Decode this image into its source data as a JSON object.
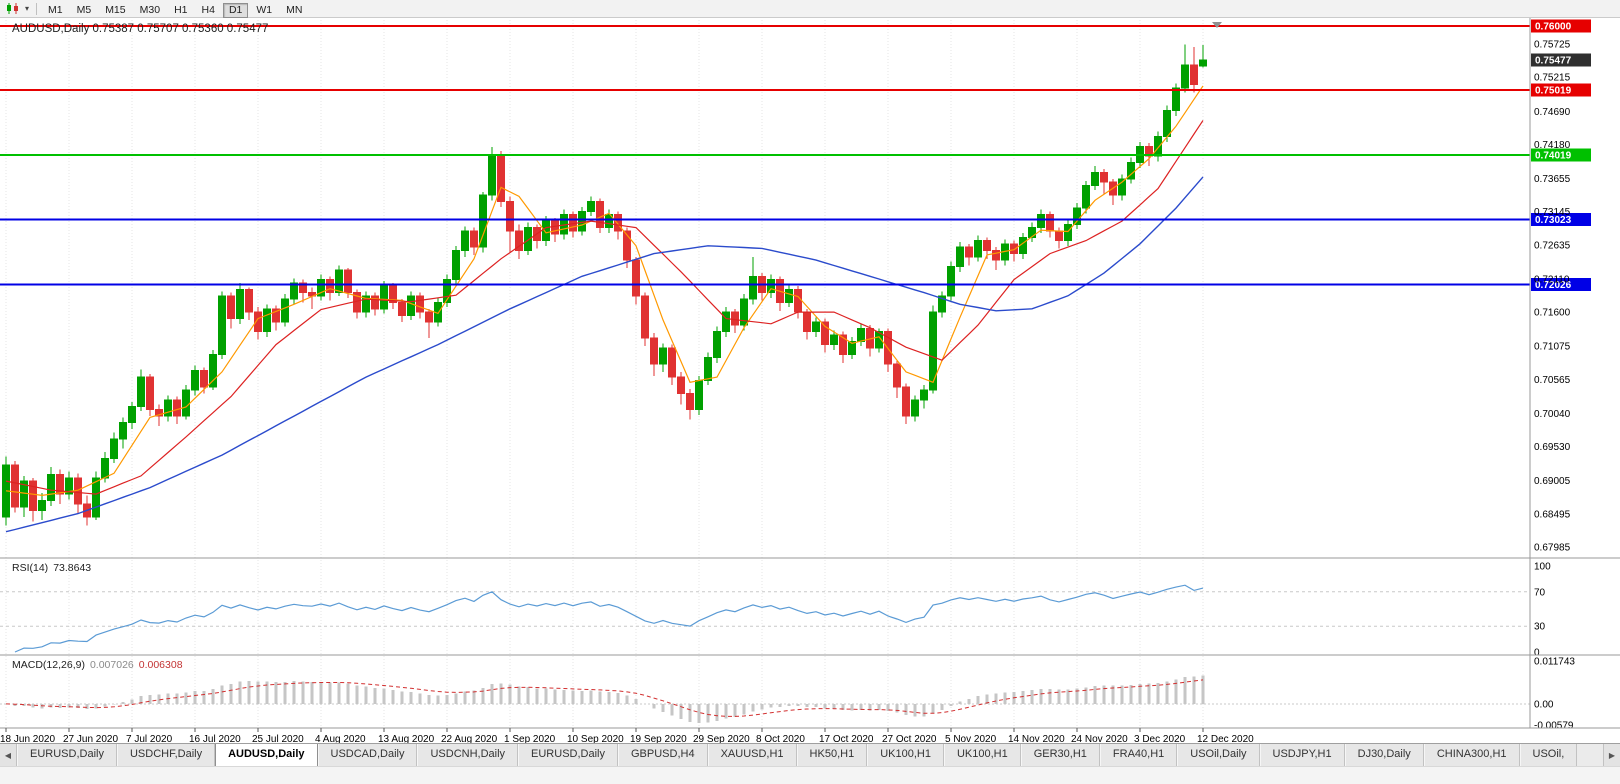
{
  "toolbar": {
    "periods": [
      "M1",
      "M5",
      "M15",
      "M30",
      "H1",
      "H4",
      "D1",
      "W1",
      "MN"
    ],
    "active_period": "D1"
  },
  "panes": {
    "main": {
      "title": "AUDUSD,Daily  0.75387 0.75707 0.75360 0.75477"
    },
    "rsi": {
      "label": "RSI(14)",
      "value": "73.8643"
    },
    "macd": {
      "label": "MACD(12,26,9)",
      "value_main": "0.007026",
      "value_signal": "0.006308"
    }
  },
  "colors": {
    "candle_up": "#00a000",
    "candle_down": "#e03232",
    "ma_fast": "#ff9900",
    "ma_mid": "#dd2222",
    "ma_slow": "#2b4bcc",
    "rsi_line": "#5b9bd5",
    "macd_hist": "#c6c6c6",
    "macd_signal": "#d23030",
    "grid": "#e4e4e4",
    "separator": "#9a9a9a",
    "axis_text": "#000000"
  },
  "chart_data": {
    "type": "candlestick",
    "symbol": "AUDUSD",
    "timeframe": "Daily",
    "ohlc_current": {
      "open": "0.75387",
      "high": "0.75707",
      "low": "0.75360",
      "close": "0.75477"
    },
    "y_axis_ticks": [
      "0.75725",
      "0.75215",
      "0.74690",
      "0.74180",
      "0.73655",
      "0.73145",
      "0.72635",
      "0.72110",
      "0.71600",
      "0.71075",
      "0.70565",
      "0.70040",
      "0.69530",
      "0.69005",
      "0.68495",
      "0.67985"
    ],
    "x_labels": [
      "18 Jun 2020",
      "27 Jun 2020",
      "7 Jul 2020",
      "16 Jul 2020",
      "25 Jul 2020",
      "4 Aug 2020",
      "13 Aug 2020",
      "22 Aug 2020",
      "1 Sep 2020",
      "10 Sep 2020",
      "19 Sep 2020",
      "29 Sep 2020",
      "8 Oct 2020",
      "17 Oct 2020",
      "27 Oct 2020",
      "5 Nov 2020",
      "14 Nov 2020",
      "24 Nov 2020",
      "3 Dec 2020",
      "12 Dec 2020"
    ],
    "label_step_bars": 7,
    "hlines": [
      {
        "price": 0.76,
        "label": "0.76000",
        "color": "#e60000"
      },
      {
        "price": 0.75019,
        "label": "0.75019",
        "color": "#e60000"
      },
      {
        "price": 0.74019,
        "label": "0.74019",
        "color": "#00c000"
      },
      {
        "price": 0.73023,
        "label": "0.73023",
        "color": "#0000e6"
      },
      {
        "price": 0.72026,
        "label": "0.72026",
        "color": "#0000e6"
      }
    ],
    "current_price": {
      "price": 0.75477,
      "label": "0.75477",
      "color": "#2f2f2f"
    },
    "candles": [
      [
        0.6845,
        0.6938,
        0.6832,
        0.6925
      ],
      [
        0.6925,
        0.6931,
        0.6852,
        0.686
      ],
      [
        0.686,
        0.6908,
        0.6845,
        0.69
      ],
      [
        0.69,
        0.6905,
        0.6838,
        0.6855
      ],
      [
        0.6855,
        0.6882,
        0.684,
        0.687
      ],
      [
        0.687,
        0.6922,
        0.6862,
        0.691
      ],
      [
        0.691,
        0.6918,
        0.6865,
        0.688
      ],
      [
        0.688,
        0.6915,
        0.6872,
        0.6905
      ],
      [
        0.6905,
        0.6912,
        0.685,
        0.6865
      ],
      [
        0.6865,
        0.6878,
        0.6832,
        0.6845
      ],
      [
        0.6845,
        0.6915,
        0.684,
        0.6905
      ],
      [
        0.6905,
        0.6945,
        0.6898,
        0.6935
      ],
      [
        0.6935,
        0.6975,
        0.6928,
        0.6965
      ],
      [
        0.6965,
        0.6998,
        0.695,
        0.699
      ],
      [
        0.699,
        0.7022,
        0.698,
        0.7015
      ],
      [
        0.7015,
        0.7072,
        0.7008,
        0.706
      ],
      [
        0.706,
        0.7065,
        0.7,
        0.701
      ],
      [
        0.701,
        0.7018,
        0.6985,
        0.7
      ],
      [
        0.7,
        0.7032,
        0.6992,
        0.7025
      ],
      [
        0.7025,
        0.703,
        0.6988,
        0.7
      ],
      [
        0.7,
        0.7048,
        0.6995,
        0.704
      ],
      [
        0.704,
        0.7078,
        0.7032,
        0.707
      ],
      [
        0.707,
        0.7075,
        0.7035,
        0.7045
      ],
      [
        0.7045,
        0.7102,
        0.704,
        0.7095
      ],
      [
        0.7095,
        0.7192,
        0.7088,
        0.7185
      ],
      [
        0.7185,
        0.719,
        0.7135,
        0.715
      ],
      [
        0.715,
        0.7205,
        0.7142,
        0.7195
      ],
      [
        0.7195,
        0.7198,
        0.7148,
        0.716
      ],
      [
        0.716,
        0.7168,
        0.7118,
        0.713
      ],
      [
        0.713,
        0.7172,
        0.7122,
        0.7165
      ],
      [
        0.7165,
        0.717,
        0.7132,
        0.7145
      ],
      [
        0.7145,
        0.7188,
        0.7138,
        0.718
      ],
      [
        0.718,
        0.7212,
        0.7172,
        0.7205
      ],
      [
        0.7205,
        0.721,
        0.7175,
        0.719
      ],
      [
        0.719,
        0.7198,
        0.7165,
        0.7185
      ],
      [
        0.7185,
        0.7218,
        0.7178,
        0.721
      ],
      [
        0.721,
        0.7215,
        0.7178,
        0.719
      ],
      [
        0.719,
        0.7232,
        0.7185,
        0.7225
      ],
      [
        0.7225,
        0.7228,
        0.7182,
        0.719
      ],
      [
        0.719,
        0.7195,
        0.715,
        0.716
      ],
      [
        0.716,
        0.7192,
        0.7152,
        0.7185
      ],
      [
        0.7185,
        0.719,
        0.7155,
        0.7165
      ],
      [
        0.7165,
        0.7208,
        0.7158,
        0.72
      ],
      [
        0.72,
        0.7205,
        0.7165,
        0.7175
      ],
      [
        0.7175,
        0.718,
        0.7145,
        0.7155
      ],
      [
        0.7155,
        0.7192,
        0.7148,
        0.7185
      ],
      [
        0.7185,
        0.719,
        0.715,
        0.716
      ],
      [
        0.716,
        0.7165,
        0.712,
        0.7145
      ],
      [
        0.7145,
        0.7182,
        0.7138,
        0.7175
      ],
      [
        0.7175,
        0.7218,
        0.7168,
        0.721
      ],
      [
        0.721,
        0.7262,
        0.7202,
        0.7255
      ],
      [
        0.7255,
        0.7292,
        0.7245,
        0.7285
      ],
      [
        0.7285,
        0.729,
        0.7248,
        0.726
      ],
      [
        0.726,
        0.7345,
        0.7252,
        0.734
      ],
      [
        0.734,
        0.7414,
        0.7332,
        0.74
      ],
      [
        0.74,
        0.7408,
        0.7322,
        0.733
      ],
      [
        0.733,
        0.7338,
        0.7252,
        0.7285
      ],
      [
        0.7285,
        0.7295,
        0.7242,
        0.7255
      ],
      [
        0.7255,
        0.7298,
        0.7248,
        0.729
      ],
      [
        0.729,
        0.7295,
        0.7258,
        0.727
      ],
      [
        0.727,
        0.7308,
        0.7262,
        0.73
      ],
      [
        0.73,
        0.7305,
        0.7268,
        0.728
      ],
      [
        0.728,
        0.7318,
        0.7272,
        0.731
      ],
      [
        0.731,
        0.7315,
        0.7275,
        0.7285
      ],
      [
        0.7285,
        0.7322,
        0.7278,
        0.7315
      ],
      [
        0.7315,
        0.7338,
        0.7308,
        0.733
      ],
      [
        0.733,
        0.7335,
        0.7282,
        0.729
      ],
      [
        0.729,
        0.7318,
        0.7282,
        0.731
      ],
      [
        0.731,
        0.7315,
        0.7272,
        0.7285
      ],
      [
        0.7285,
        0.729,
        0.7228,
        0.724
      ],
      [
        0.724,
        0.7245,
        0.7172,
        0.7185
      ],
      [
        0.7185,
        0.719,
        0.7108,
        0.712
      ],
      [
        0.712,
        0.7128,
        0.7062,
        0.708
      ],
      [
        0.708,
        0.7112,
        0.7068,
        0.7105
      ],
      [
        0.7105,
        0.711,
        0.7048,
        0.706
      ],
      [
        0.706,
        0.7068,
        0.7018,
        0.7035
      ],
      [
        0.7035,
        0.7042,
        0.6995,
        0.701
      ],
      [
        0.701,
        0.7062,
        0.7002,
        0.7055
      ],
      [
        0.7055,
        0.7098,
        0.7048,
        0.709
      ],
      [
        0.709,
        0.7138,
        0.7082,
        0.713
      ],
      [
        0.713,
        0.7168,
        0.7122,
        0.716
      ],
      [
        0.716,
        0.7165,
        0.7128,
        0.714
      ],
      [
        0.714,
        0.7188,
        0.7132,
        0.718
      ],
      [
        0.718,
        0.7245,
        0.7172,
        0.7215
      ],
      [
        0.7215,
        0.722,
        0.7178,
        0.719
      ],
      [
        0.719,
        0.7218,
        0.7182,
        0.721
      ],
      [
        0.721,
        0.7215,
        0.7162,
        0.7175
      ],
      [
        0.7175,
        0.7202,
        0.7168,
        0.7195
      ],
      [
        0.7195,
        0.72,
        0.715,
        0.716
      ],
      [
        0.716,
        0.7165,
        0.7118,
        0.713
      ],
      [
        0.713,
        0.7152,
        0.7122,
        0.7145
      ],
      [
        0.7145,
        0.715,
        0.7098,
        0.711
      ],
      [
        0.711,
        0.7132,
        0.7102,
        0.7125
      ],
      [
        0.7125,
        0.713,
        0.7082,
        0.7095
      ],
      [
        0.7095,
        0.7122,
        0.7088,
        0.7115
      ],
      [
        0.7115,
        0.7142,
        0.7108,
        0.7135
      ],
      [
        0.7135,
        0.714,
        0.7092,
        0.7105
      ],
      [
        0.7105,
        0.7135,
        0.7098,
        0.713
      ],
      [
        0.713,
        0.7135,
        0.7068,
        0.708
      ],
      [
        0.708,
        0.7085,
        0.7028,
        0.7045
      ],
      [
        0.7045,
        0.705,
        0.6988,
        0.7
      ],
      [
        0.7,
        0.7032,
        0.6992,
        0.7025
      ],
      [
        0.7025,
        0.7048,
        0.7012,
        0.704
      ],
      [
        0.704,
        0.717,
        0.7035,
        0.716
      ],
      [
        0.716,
        0.7192,
        0.7152,
        0.7185
      ],
      [
        0.7185,
        0.7238,
        0.7178,
        0.723
      ],
      [
        0.723,
        0.7268,
        0.7222,
        0.726
      ],
      [
        0.726,
        0.7265,
        0.7232,
        0.7245
      ],
      [
        0.7245,
        0.7278,
        0.7238,
        0.727
      ],
      [
        0.727,
        0.7275,
        0.7242,
        0.7255
      ],
      [
        0.7255,
        0.726,
        0.7225,
        0.724
      ],
      [
        0.724,
        0.7272,
        0.7232,
        0.7265
      ],
      [
        0.7265,
        0.727,
        0.7238,
        0.725
      ],
      [
        0.725,
        0.7282,
        0.7242,
        0.7275
      ],
      [
        0.7275,
        0.7298,
        0.7268,
        0.729
      ],
      [
        0.729,
        0.7318,
        0.7282,
        0.731
      ],
      [
        0.731,
        0.7315,
        0.7275,
        0.7285
      ],
      [
        0.7285,
        0.729,
        0.7258,
        0.727
      ],
      [
        0.727,
        0.7302,
        0.7262,
        0.7295
      ],
      [
        0.7295,
        0.7328,
        0.7288,
        0.732
      ],
      [
        0.732,
        0.7362,
        0.7312,
        0.7355
      ],
      [
        0.7355,
        0.7385,
        0.7348,
        0.7375
      ],
      [
        0.7375,
        0.738,
        0.7342,
        0.736
      ],
      [
        0.736,
        0.7365,
        0.7325,
        0.734
      ],
      [
        0.734,
        0.7372,
        0.7332,
        0.7365
      ],
      [
        0.7365,
        0.7398,
        0.7358,
        0.739
      ],
      [
        0.739,
        0.7422,
        0.7382,
        0.7415
      ],
      [
        0.7415,
        0.742,
        0.7385,
        0.74
      ],
      [
        0.74,
        0.7438,
        0.7392,
        0.743
      ],
      [
        0.743,
        0.7478,
        0.7422,
        0.747
      ],
      [
        0.747,
        0.7512,
        0.7462,
        0.7505
      ],
      [
        0.7505,
        0.7572,
        0.7498,
        0.754
      ],
      [
        0.754,
        0.7568,
        0.7498,
        0.751
      ],
      [
        0.75387,
        0.75707,
        0.7536,
        0.75477
      ]
    ],
    "overlays": {
      "ma_fast_orange": [
        [
          0,
          0.6885
        ],
        [
          4,
          0.6878
        ],
        [
          8,
          0.6886
        ],
        [
          12,
          0.6912
        ],
        [
          16,
          0.6998
        ],
        [
          20,
          0.7014
        ],
        [
          24,
          0.7068
        ],
        [
          28,
          0.715
        ],
        [
          32,
          0.7172
        ],
        [
          36,
          0.7196
        ],
        [
          40,
          0.7181
        ],
        [
          44,
          0.7178
        ],
        [
          48,
          0.7158
        ],
        [
          52,
          0.7242
        ],
        [
          55,
          0.7352
        ],
        [
          57,
          0.7338
        ],
        [
          60,
          0.7282
        ],
        [
          64,
          0.7294
        ],
        [
          67,
          0.7312
        ],
        [
          70,
          0.7262
        ],
        [
          73,
          0.7148
        ],
        [
          76,
          0.7052
        ],
        [
          79,
          0.706
        ],
        [
          82,
          0.7136
        ],
        [
          85,
          0.7196
        ],
        [
          88,
          0.7184
        ],
        [
          91,
          0.7138
        ],
        [
          94,
          0.7112
        ],
        [
          97,
          0.7122
        ],
        [
          100,
          0.7068
        ],
        [
          103,
          0.7052
        ],
        [
          106,
          0.7152
        ],
        [
          109,
          0.7248
        ],
        [
          112,
          0.7256
        ],
        [
          115,
          0.7286
        ],
        [
          118,
          0.7284
        ],
        [
          121,
          0.7332
        ],
        [
          124,
          0.736
        ],
        [
          127,
          0.7396
        ],
        [
          130,
          0.7446
        ],
        [
          133,
          0.7508
        ]
      ],
      "ma_mid_red": [
        [
          0,
          0.69
        ],
        [
          5,
          0.6886
        ],
        [
          10,
          0.688
        ],
        [
          15,
          0.6908
        ],
        [
          20,
          0.6968
        ],
        [
          25,
          0.703
        ],
        [
          30,
          0.711
        ],
        [
          35,
          0.7164
        ],
        [
          40,
          0.718
        ],
        [
          45,
          0.7176
        ],
        [
          50,
          0.7186
        ],
        [
          55,
          0.7242
        ],
        [
          60,
          0.729
        ],
        [
          65,
          0.73
        ],
        [
          70,
          0.729
        ],
        [
          75,
          0.7222
        ],
        [
          80,
          0.715
        ],
        [
          85,
          0.7142
        ],
        [
          88,
          0.716
        ],
        [
          92,
          0.716
        ],
        [
          96,
          0.7136
        ],
        [
          100,
          0.7106
        ],
        [
          104,
          0.7086
        ],
        [
          108,
          0.714
        ],
        [
          112,
          0.721
        ],
        [
          116,
          0.725
        ],
        [
          120,
          0.727
        ],
        [
          124,
          0.73
        ],
        [
          128,
          0.735
        ],
        [
          133,
          0.7455
        ]
      ],
      "ma_slow_blue": [
        [
          0,
          0.6822
        ],
        [
          8,
          0.685
        ],
        [
          16,
          0.689
        ],
        [
          24,
          0.694
        ],
        [
          32,
          0.7
        ],
        [
          40,
          0.706
        ],
        [
          48,
          0.711
        ],
        [
          56,
          0.7165
        ],
        [
          64,
          0.7215
        ],
        [
          72,
          0.725
        ],
        [
          78,
          0.7262
        ],
        [
          84,
          0.7258
        ],
        [
          90,
          0.724
        ],
        [
          96,
          0.7215
        ],
        [
          102,
          0.719
        ],
        [
          106,
          0.7172
        ],
        [
          110,
          0.7162
        ],
        [
          114,
          0.7165
        ],
        [
          118,
          0.7185
        ],
        [
          122,
          0.722
        ],
        [
          126,
          0.7265
        ],
        [
          130,
          0.732
        ],
        [
          133,
          0.7368
        ]
      ]
    },
    "indicators": {
      "rsi": {
        "period": 14,
        "last": "73.8643",
        "levels": [
          "100",
          "70",
          "30",
          "0"
        ]
      },
      "macd": {
        "params": "12,26,9",
        "last_main": "0.007026",
        "last_signal": "0.006308",
        "axis_labels": [
          "0.011743",
          "0.00",
          "-0.00579"
        ],
        "scale_max": 0.011743,
        "scale_min": -0.00579
      }
    }
  },
  "tabs": {
    "items": [
      "EURUSD,Daily",
      "USDCHF,Daily",
      "AUDUSD,Daily",
      "USDCAD,Daily",
      "USDCNH,Daily",
      "EURUSD,Daily",
      "GBPUSD,H4",
      "XAUUSD,H1",
      "HK50,H1",
      "UK100,H1",
      "UK100,H1",
      "GER30,H1",
      "FRA40,H1",
      "USOil,Daily",
      "USDJPY,H1",
      "DJ30,Daily",
      "CHINA300,H1",
      "USOil,"
    ],
    "active_index": 2
  }
}
